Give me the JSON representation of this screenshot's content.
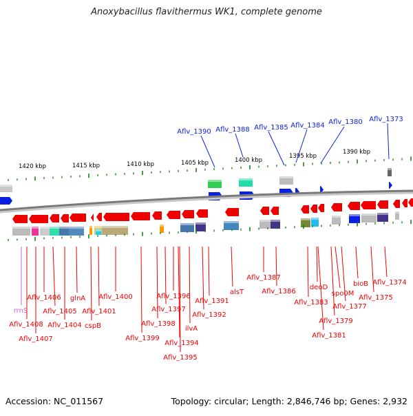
{
  "title": "Anoxybacillus flavithermus WK1, complete genome",
  "footer": {
    "accession": "Accession: NC_011567",
    "summary": "Topology: circular; Length: 2,846,746 bp; Genes: 2,932"
  },
  "colors": {
    "forward_gene": "#0a1fe0",
    "reverse_gene": "#ee0000",
    "backbone": "#808080",
    "tick": "#1c7d1c",
    "rrna": "#cc66cc"
  },
  "scale": {
    "unit": "kbp",
    "labels": [
      "1420 kbp",
      "1415 kbp",
      "1410 kbp",
      "1405 kbp",
      "1400 kbp",
      "1395 kbp",
      "1390 kbp"
    ]
  },
  "top_labels": [
    "Aflv_1390",
    "Aflv_1388",
    "Aflv_1385",
    "Aflv_1384",
    "Aflv_1380",
    "Aflv_1373"
  ],
  "bottom_labels": [
    "rrnS",
    "Aflv_1408",
    "Aflv_1407",
    "Aflv_1406",
    "Aflv_1405",
    "Aflv_1404",
    "glnA",
    "cspB",
    "Aflv_1401",
    "Aflv_1400",
    "Aflv_1399",
    "Aflv_1398",
    "Aflv_1397",
    "Aflv_1396",
    "Aflv_1395",
    "Aflv_1394",
    "ilvA",
    "Aflv_1392",
    "Aflv_1391",
    "alsT",
    "Aflv_1387",
    "Aflv_1386",
    "Aflv_1383",
    "deoD",
    "Aflv_1381",
    "Aflv_1379",
    "spo0M",
    "Aflv_1377",
    "bioB",
    "Aflv_1375",
    "Aflv_1374"
  ]
}
